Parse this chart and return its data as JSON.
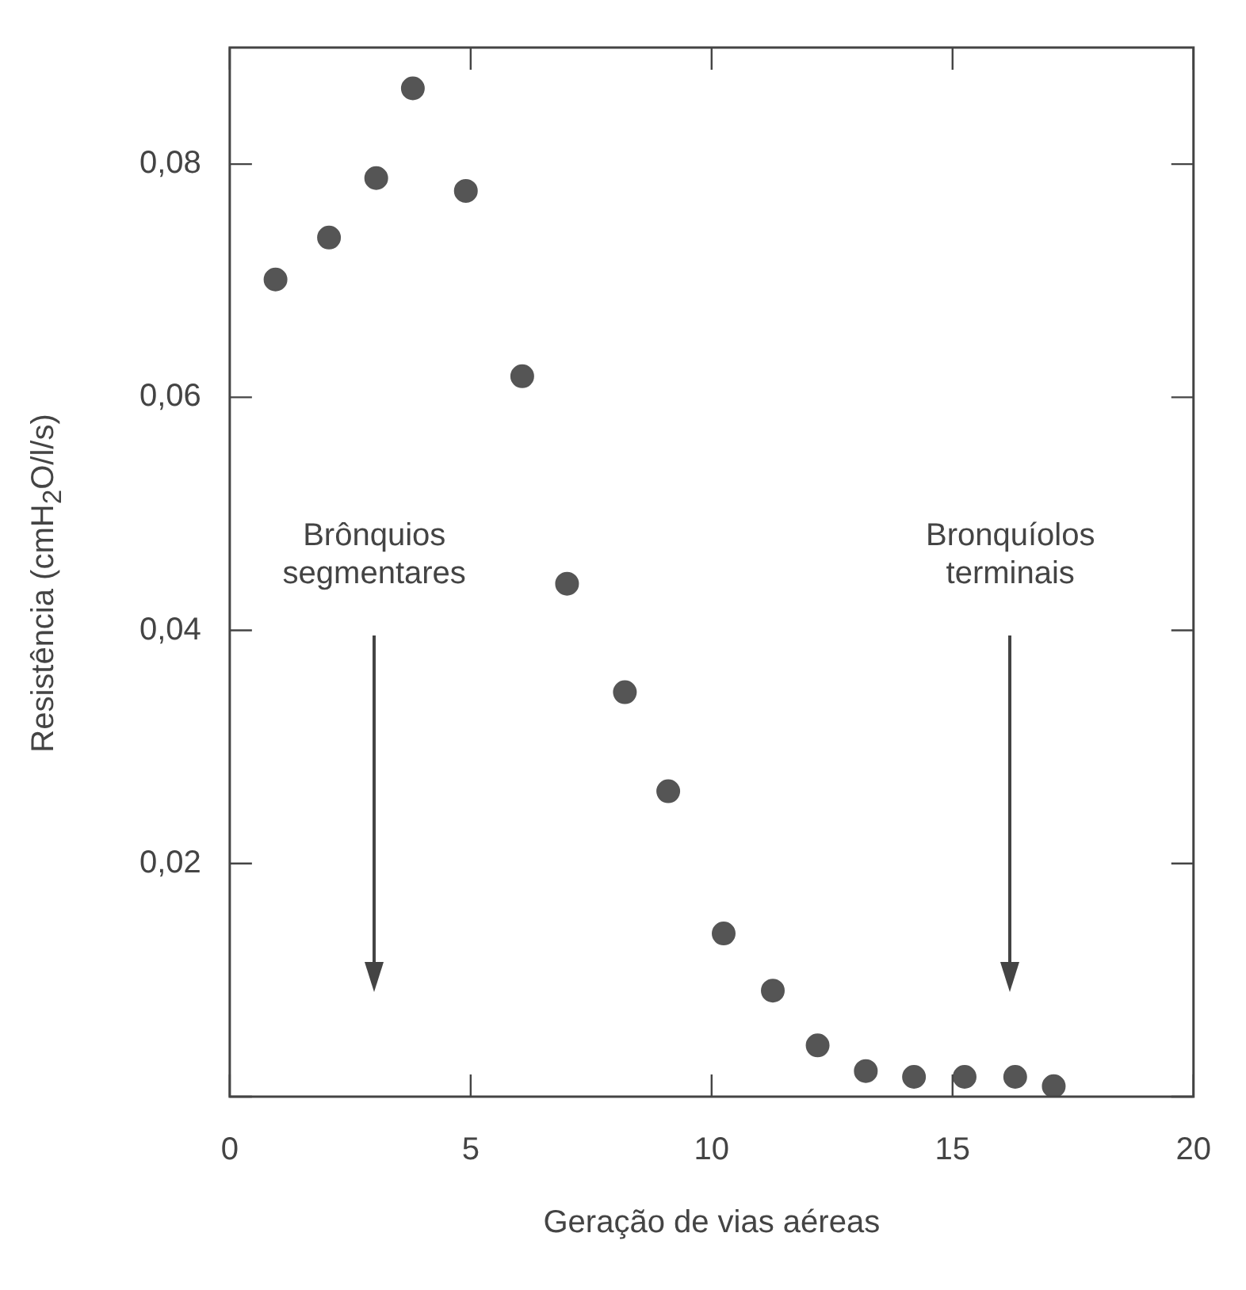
{
  "chart_data": {
    "type": "scatter",
    "xlabel": "Geração de vias aéreas",
    "ylabel": "Resistência (cmH$_{2}$O/l/s)",
    "x": [
      0.95,
      2.06,
      3.04,
      3.8,
      4.9,
      6.07,
      7.0,
      8.2,
      9.1,
      10.25,
      11.27,
      12.2,
      13.2,
      14.2,
      15.25,
      16.3,
      17.1
    ],
    "values": [
      0.0701,
      0.0737,
      0.0788,
      0.0865,
      0.0777,
      0.0618,
      0.044,
      0.0347,
      0.0262,
      0.014,
      0.0091,
      0.0044,
      0.0022,
      0.0017,
      0.0017,
      0.0017,
      0.0009
    ],
    "color": "#555555",
    "marker": "circle",
    "grid": false,
    "legend": false,
    "xlim": [
      0,
      20
    ],
    "xticks": [
      0,
      5,
      10,
      15,
      20
    ],
    "ylim": [
      0,
      0.09
    ],
    "yticks": [
      {
        "value": 0,
        "label": null
      },
      {
        "value": 0.02,
        "label": "0,02"
      },
      {
        "value": 0.04,
        "label": "0,04"
      },
      {
        "value": 0.06,
        "label": "0,06"
      },
      {
        "value": 0.08,
        "label": "0,08"
      }
    ],
    "annotations": [
      "Brônquios segmentares",
      "Bronquíolos terminais"
    ]
  }
}
